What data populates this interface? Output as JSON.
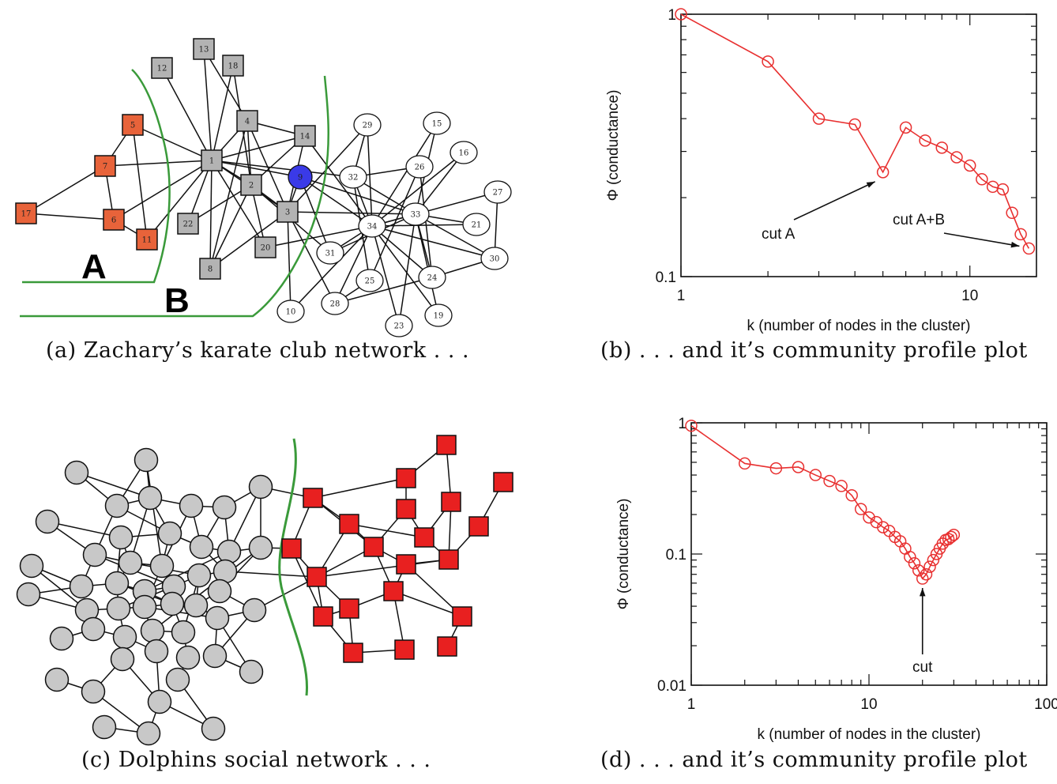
{
  "captions": {
    "a": "(a) Zachary’s karate club network . . .",
    "b": "(b) . . . and it’s community profile plot",
    "c": "(c) Dolphins social network . . .",
    "d": "(d) . . . and it’s community profile plot"
  },
  "karate": {
    "region_label_a": "A",
    "region_label_b": "B",
    "colors": {
      "group_a": "#e8633a",
      "group_b": "#b3b3b3",
      "highlight": "#3a3ae8",
      "other": "#ffffff",
      "cut_line": "#3a9a3a"
    },
    "node_labels": [
      "1",
      "2",
      "3",
      "4",
      "5",
      "6",
      "7",
      "8",
      "9",
      "10",
      "11",
      "12",
      "13",
      "14",
      "15",
      "16",
      "17",
      "18",
      "19",
      "20",
      "21",
      "22",
      "23",
      "24",
      "25",
      "26",
      "27",
      "28",
      "29",
      "30",
      "31",
      "32",
      "33",
      "34"
    ]
  },
  "dolphins": {
    "colors": {
      "left": "#c8c8c8",
      "right": "#e82020",
      "cut_line": "#3a9a3a"
    }
  },
  "chart_data": [
    {
      "type": "line",
      "panel": "b",
      "xlabel": "k (number of nodes in the cluster)",
      "ylabel": "Φ (conductance)",
      "xscale": "log",
      "yscale": "log",
      "xlim": [
        1,
        17
      ],
      "ylim": [
        0.1,
        1
      ],
      "xticks": [
        "1",
        "10"
      ],
      "yticks": [
        "0.1",
        "1"
      ],
      "color": "#e83030",
      "x": [
        1,
        2,
        3,
        4,
        5,
        6,
        7,
        8,
        9,
        10,
        11,
        12,
        13,
        14,
        15,
        16
      ],
      "y": [
        1.0,
        0.66,
        0.4,
        0.38,
        0.25,
        0.37,
        0.33,
        0.31,
        0.285,
        0.265,
        0.235,
        0.22,
        0.215,
        0.175,
        0.145,
        0.128
      ],
      "annotations": [
        {
          "text": "cut A",
          "x": 5,
          "y": 0.25
        },
        {
          "text": "cut A+B",
          "x": 16,
          "y": 0.128
        }
      ]
    },
    {
      "type": "line",
      "panel": "d",
      "xlabel": "k (number of nodes in the cluster)",
      "ylabel": "Φ (conductance)",
      "xscale": "log",
      "yscale": "log",
      "xlim": [
        1,
        100
      ],
      "ylim": [
        0.01,
        1
      ],
      "xticks": [
        "1",
        "10",
        "100"
      ],
      "yticks": [
        "0.01",
        "0.1",
        "1"
      ],
      "color": "#e83030",
      "x": [
        1,
        2,
        3,
        4,
        5,
        6,
        7,
        8,
        9,
        10,
        11,
        12,
        13,
        14,
        15,
        16,
        17,
        18,
        19,
        20,
        21,
        22,
        23,
        24,
        25,
        26,
        27,
        28,
        29,
        30
      ],
      "y": [
        0.95,
        0.49,
        0.45,
        0.46,
        0.4,
        0.36,
        0.33,
        0.28,
        0.22,
        0.19,
        0.175,
        0.16,
        0.15,
        0.135,
        0.125,
        0.11,
        0.095,
        0.085,
        0.075,
        0.065,
        0.07,
        0.08,
        0.09,
        0.1,
        0.11,
        0.12,
        0.128,
        0.13,
        0.135,
        0.14
      ],
      "annotations": [
        {
          "text": "cut",
          "x": 20,
          "y": 0.065
        }
      ]
    }
  ]
}
